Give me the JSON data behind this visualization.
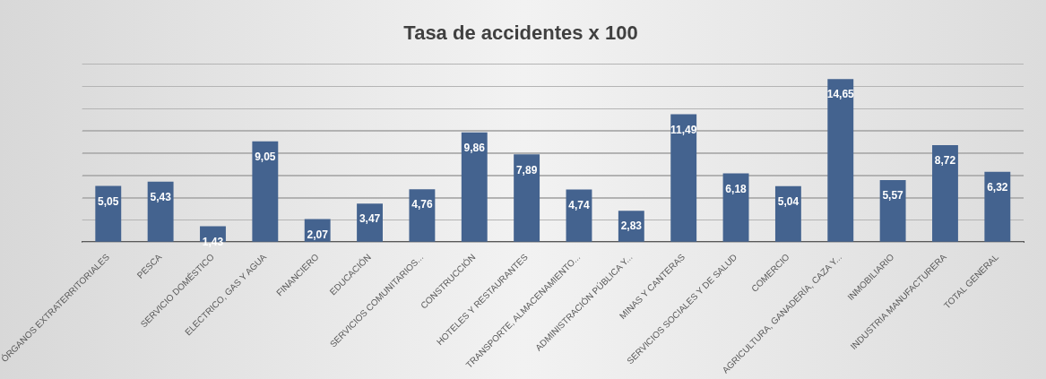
{
  "chart_data": {
    "type": "bar",
    "title": "Tasa de accidentes x 100",
    "categories": [
      "ÓRGANOS EXTRATERRITORIALES",
      "PESCA",
      "SERVICIO DOMÉSTICO",
      "ELECTRICO, GAS Y AGUA",
      "FINANCIERO",
      "EDUCACIÓN",
      "SERVICIOS COMUNITARIOS...",
      "CONSTRUCCIÓN",
      "HOTELES Y RESTAURANTES",
      "TRANSPORTE, ALMACENAMIENTO...",
      "ADMINISTRACIÓN PÚBLICA Y...",
      "MINAS Y CANTERAS",
      "SERVICIOS SOCIALES Y DE SALUD",
      "COMERCIO",
      "AGRICULTURA, GANADERÍA, CAZA Y...",
      "INMOBILIARIO",
      "INDUSTRIA MANUFACTURERA",
      "TOTAL GENERAL"
    ],
    "values": [
      5.05,
      5.43,
      1.43,
      9.05,
      2.07,
      3.47,
      4.76,
      9.86,
      7.89,
      4.74,
      2.83,
      11.49,
      6.18,
      5.04,
      14.65,
      5.57,
      8.72,
      6.32
    ],
    "value_labels": [
      "5,05",
      "5,43",
      "1,43",
      "9,05",
      "2,07",
      "3,47",
      "4,76",
      "9,86",
      "7,89",
      "4,74",
      "2,83",
      "11,49",
      "6,18",
      "5,04",
      "14,65",
      "5,57",
      "8,72",
      "6,32"
    ],
    "color": "#44638f",
    "grid": "y",
    "legend": false
  }
}
